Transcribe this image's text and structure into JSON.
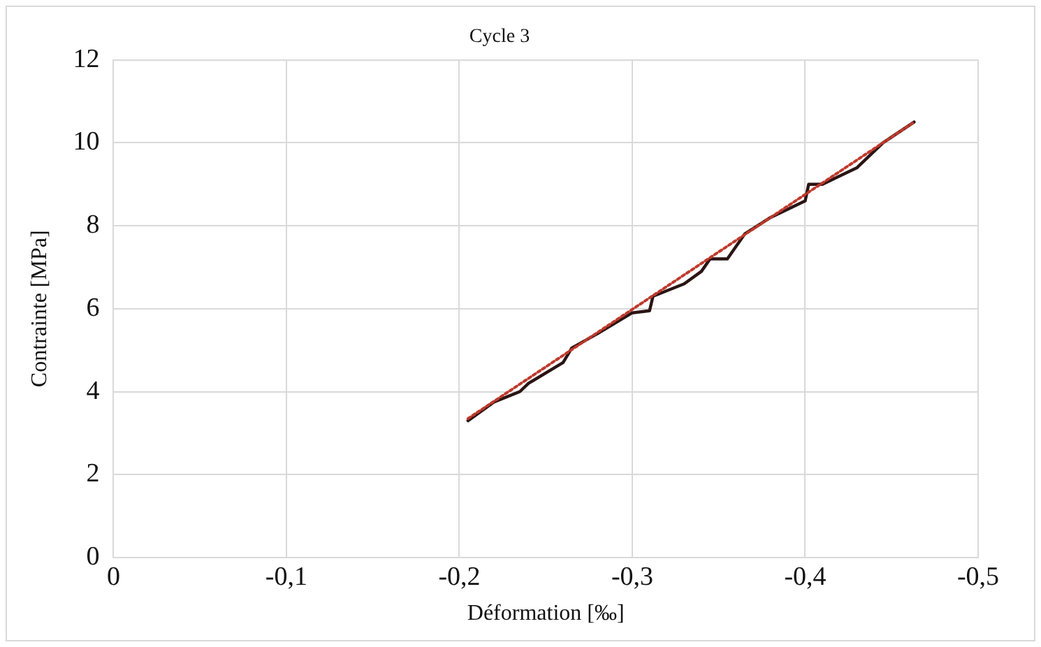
{
  "chart_data": {
    "type": "line",
    "title": "Cycle 3",
    "xlabel": "Déformation [‰]",
    "ylabel": "Contrainte [MPa]",
    "xlim": [
      0,
      -0.5
    ],
    "xticks": [
      {
        "value": 0,
        "label": "0"
      },
      {
        "value": -0.1,
        "label": "-0,1"
      },
      {
        "value": -0.2,
        "label": "-0,2"
      },
      {
        "value": -0.3,
        "label": "-0,3"
      },
      {
        "value": -0.4,
        "label": "-0,4"
      },
      {
        "value": -0.5,
        "label": "-0,5"
      }
    ],
    "ylim": [
      0,
      12
    ],
    "yticks": [
      0,
      2,
      4,
      6,
      8,
      10,
      12
    ],
    "grid": true,
    "legend": false,
    "series": [
      {
        "color": "#2a1414",
        "line_style": "solid",
        "x": [
          -0.205,
          -0.22,
          -0.235,
          -0.24,
          -0.26,
          -0.265,
          -0.28,
          -0.3,
          -0.31,
          -0.312,
          -0.33,
          -0.34,
          -0.345,
          -0.355,
          -0.365,
          -0.38,
          -0.4,
          -0.402,
          -0.41,
          -0.43,
          -0.445,
          -0.463
        ],
        "values": [
          3.3,
          3.75,
          4.0,
          4.2,
          4.7,
          5.05,
          5.4,
          5.9,
          5.95,
          6.3,
          6.6,
          6.9,
          7.2,
          7.2,
          7.8,
          8.2,
          8.6,
          9.0,
          9.0,
          9.4,
          10.0,
          10.5
        ]
      },
      {
        "color": "#c0392b",
        "line_style": "dotted",
        "x": [
          -0.205,
          -0.463
        ],
        "values": [
          3.35,
          10.5
        ]
      }
    ]
  }
}
